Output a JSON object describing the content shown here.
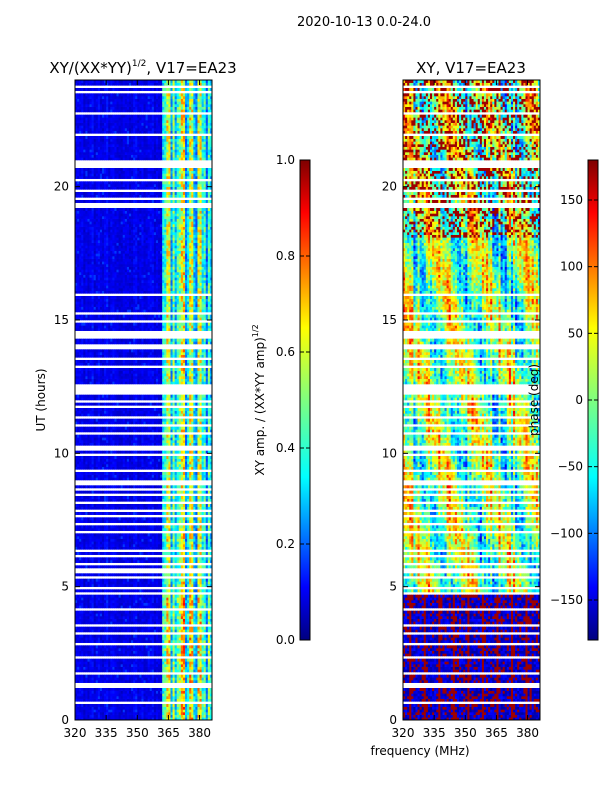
{
  "figure": {
    "suptitle": "2020-10-13 0.0-24.0",
    "xlabel_shared": "frequency (MHz)"
  },
  "chart_data": [
    {
      "type": "heatmap",
      "id": "amp",
      "title_main": "XY/(XX*YY)",
      "title_exp": "1/2",
      "title_tail": ", V17=EA23",
      "ylabel": "UT (hours)",
      "xlim": [
        320,
        386
      ],
      "ylim": [
        0,
        24
      ],
      "xticks": [
        320,
        335,
        350,
        365,
        380
      ],
      "yticks": [
        0,
        5,
        10,
        15,
        20
      ],
      "colorbar": {
        "label_main": "XY amp. / (XX*YY amp)",
        "label_exp": "1/2",
        "range": [
          0.0,
          1.0
        ],
        "ticks": [
          0.0,
          0.2,
          0.4,
          0.6,
          0.8,
          1.0
        ],
        "tick_labels": [
          "0.0",
          "0.2",
          "0.4",
          "0.6",
          "0.8",
          "1.0"
        ]
      },
      "description_values": {
        "low_band_mhz": [
          320,
          362
        ],
        "low_band_typical": 0.08,
        "high_band_mhz": [
          362,
          386
        ],
        "high_band_typical": 0.35,
        "bright_channels_mhz": [
          365,
          372,
          376,
          380
        ],
        "bright_channel_peak": 0.6
      }
    },
    {
      "type": "heatmap",
      "id": "phase",
      "title": "XY, V17=EA23",
      "xlim": [
        320,
        386
      ],
      "ylim": [
        0,
        24
      ],
      "xticks": [
        320,
        335,
        350,
        365,
        380
      ],
      "yticks": [
        0,
        5,
        10,
        15,
        20
      ],
      "colorbar": {
        "label": "phase (deg)",
        "range": [
          -180,
          180
        ],
        "ticks": [
          -150,
          -100,
          -50,
          0,
          50,
          100,
          150
        ],
        "tick_labels": [
          "−150",
          "−100",
          "−50",
          "0",
          "50",
          "100",
          "150"
        ]
      },
      "description_values": {
        "early_block_hours": [
          0,
          4.7
        ],
        "early_block_phase": -150,
        "mid_hours": [
          4.7,
          24
        ],
        "mid_phase_range": [
          -100,
          100
        ]
      }
    }
  ],
  "colors": {
    "jet": [
      "#00007f",
      "#0000ff",
      "#007fff",
      "#00ffff",
      "#7fff7f",
      "#ffff00",
      "#ff7f00",
      "#ff0000",
      "#7f0000"
    ],
    "gap": "#ffffff",
    "axis": "#000000"
  }
}
